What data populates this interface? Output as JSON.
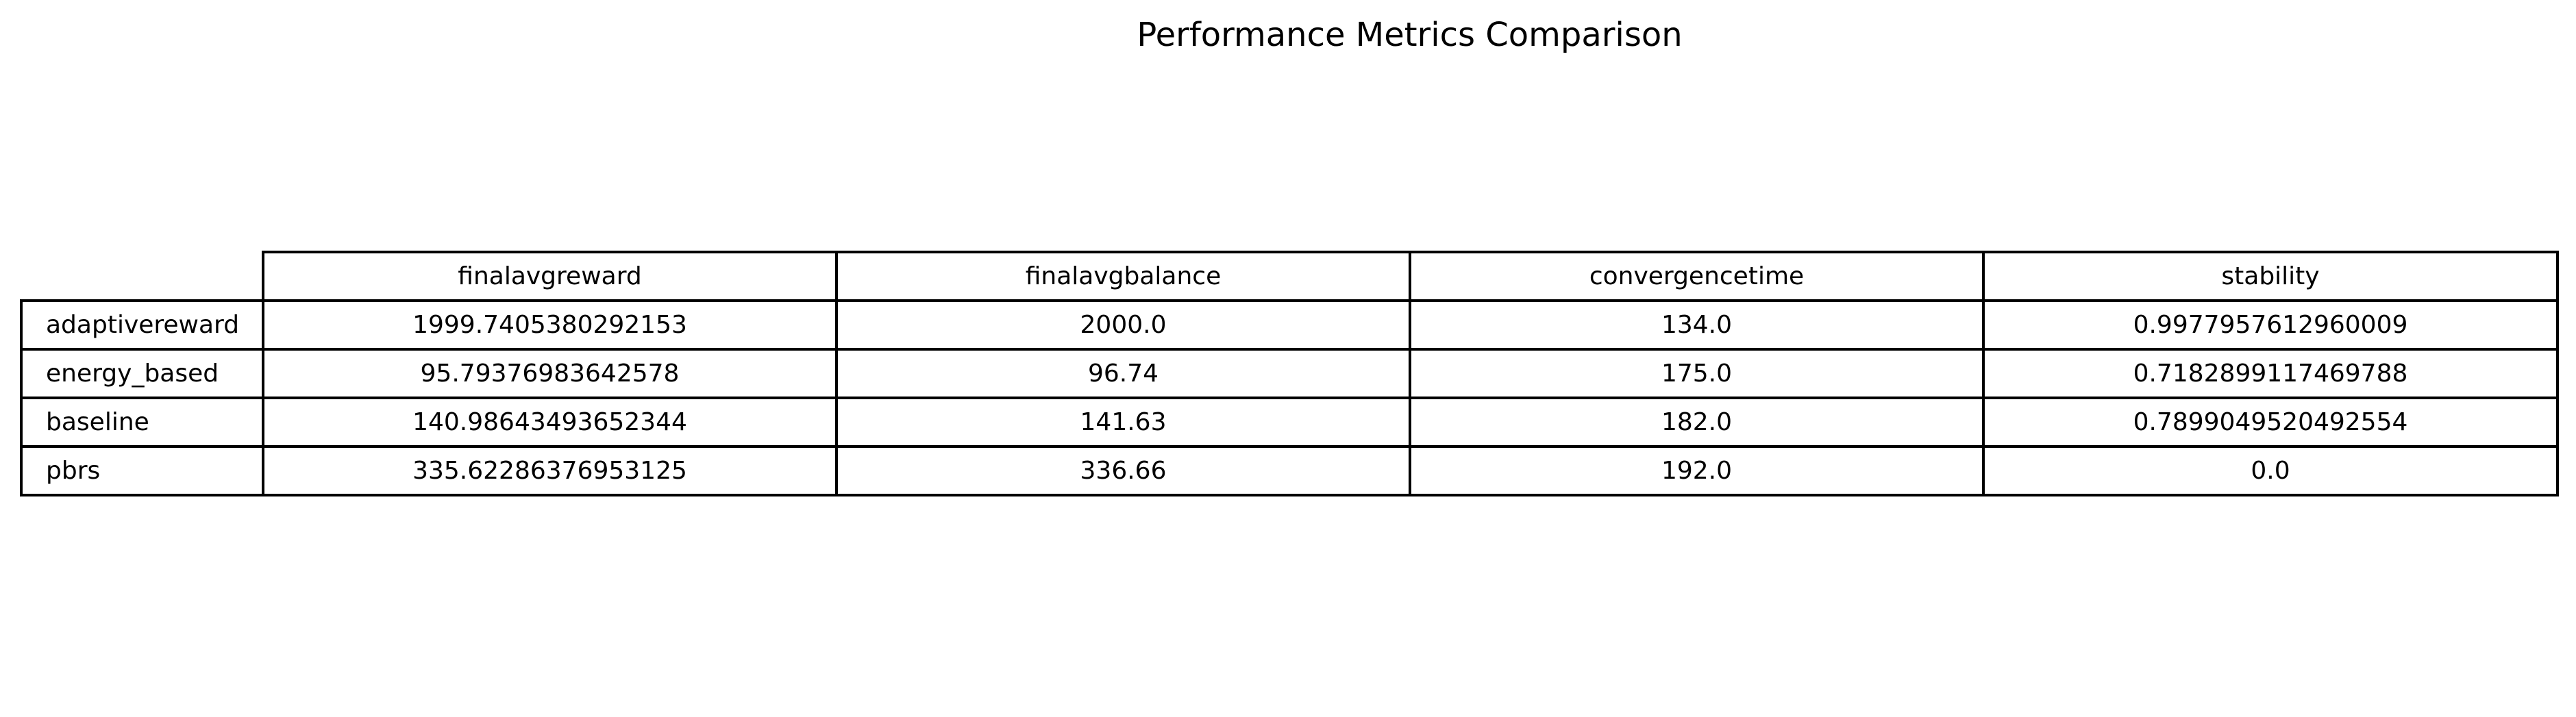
{
  "chart_data": {
    "type": "table",
    "title": "Performance Metrics Comparison",
    "columns": [
      "finalavgreward",
      "finalavgbalance",
      "convergencetime",
      "stability"
    ],
    "rows": [
      {
        "label": "adaptivereward",
        "values": [
          "1999.7405380292153",
          "2000.0",
          "134.0",
          "0.9977957612960009"
        ]
      },
      {
        "label": "energy_based",
        "values": [
          "95.79376983642578",
          "96.74",
          "175.0",
          "0.7182899117469788"
        ]
      },
      {
        "label": "baseline",
        "values": [
          "140.98643493652344",
          "141.63",
          "182.0",
          "0.7899049520492554"
        ]
      },
      {
        "label": "pbrs",
        "values": [
          "335.62286376953125",
          "336.66",
          "192.0",
          "0.0"
        ]
      }
    ]
  }
}
